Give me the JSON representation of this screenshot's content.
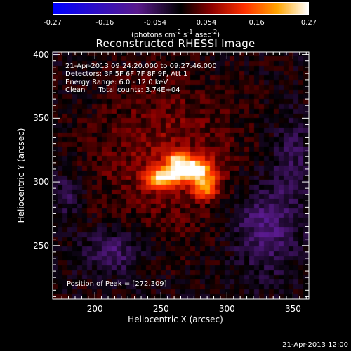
{
  "chart_data": {
    "type": "heatmap",
    "title": "Reconstructed RHESSI Image",
    "xlabel": "Heliocentric X (arcsec)",
    "ylabel": "Heliocentric Y (arcsec)",
    "xlim": [
      168,
      362
    ],
    "ylim": [
      208,
      402
    ],
    "x_ticks": [
      "200",
      "250",
      "300",
      "350"
    ],
    "x_tick_values": [
      200,
      250,
      300,
      350
    ],
    "y_ticks": [
      "250",
      "300",
      "350",
      "400"
    ],
    "y_tick_values": [
      250,
      300,
      350,
      400
    ],
    "colorbar": {
      "ticks": [
        "-0.27",
        "-0.16",
        "-0.054",
        "0.054",
        "0.16",
        "0.27"
      ],
      "tick_values": [
        -0.27,
        -0.16,
        -0.054,
        0.054,
        0.16,
        0.27
      ],
      "units_text": "(photons cm",
      "units_exp1": "-2",
      "units_mid": " s",
      "units_exp2": "-1",
      "units_mid2": " asec",
      "units_exp3": "-2",
      "units_end": ")"
    },
    "annotations": {
      "time": "21-Apr-2013 09:24:20.000 to 09:27:46.000",
      "detectors": "Detectors: 3F 5F 6F 7F 8F 9F, Att 1",
      "energy": "Energy Range: 6.0 - 12.0 keV",
      "clean": "Clean      Total counts: 3.74E+04",
      "peak": "Position of Peak = [272,309]"
    },
    "peak": [
      272,
      309
    ],
    "peak_value": 0.27,
    "footer": "21-Apr-2013 12:00"
  },
  "colors": {
    "background": "#000000",
    "axes": "#ffffff",
    "colormap": [
      "#0000ff",
      "#5a1a8c",
      "#000000",
      "#8b0000",
      "#ff3000",
      "#ffa500",
      "#ffffff"
    ]
  }
}
